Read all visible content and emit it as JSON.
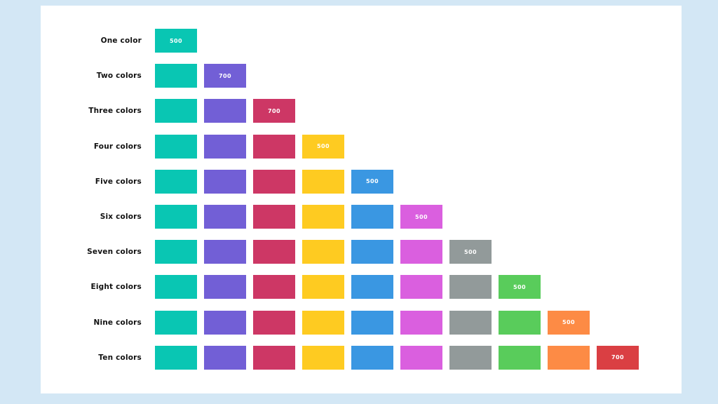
{
  "palette": {
    "teal": "#09c6b3",
    "purple": "#725fd6",
    "crimson": "#cd3765",
    "yellow": "#fecb21",
    "blue": "#3a97e2",
    "magenta": "#da5fdf",
    "gray": "#929a9a",
    "green": "#59cc5b",
    "orange": "#fd8b45",
    "red": "#da3f43"
  },
  "rows": [
    {
      "label": "One color",
      "swatches": [
        "teal"
      ],
      "shade": "500"
    },
    {
      "label": "Two colors",
      "swatches": [
        "teal",
        "purple"
      ],
      "shade": "700"
    },
    {
      "label": "Three colors",
      "swatches": [
        "teal",
        "purple",
        "crimson"
      ],
      "shade": "700"
    },
    {
      "label": "Four colors",
      "swatches": [
        "teal",
        "purple",
        "crimson",
        "yellow"
      ],
      "shade": "500"
    },
    {
      "label": "Five colors",
      "swatches": [
        "teal",
        "purple",
        "crimson",
        "yellow",
        "blue"
      ],
      "shade": "500"
    },
    {
      "label": "Six colors",
      "swatches": [
        "teal",
        "purple",
        "crimson",
        "yellow",
        "blue",
        "magenta"
      ],
      "shade": "500"
    },
    {
      "label": "Seven colors",
      "swatches": [
        "teal",
        "purple",
        "crimson",
        "yellow",
        "blue",
        "magenta",
        "gray"
      ],
      "shade": "500"
    },
    {
      "label": "Eight colors",
      "swatches": [
        "teal",
        "purple",
        "crimson",
        "yellow",
        "blue",
        "magenta",
        "gray",
        "green"
      ],
      "shade": "500"
    },
    {
      "label": "Nine colors",
      "swatches": [
        "teal",
        "purple",
        "crimson",
        "yellow",
        "blue",
        "magenta",
        "gray",
        "green",
        "orange"
      ],
      "shade": "500"
    },
    {
      "label": "Ten colors",
      "swatches": [
        "teal",
        "purple",
        "crimson",
        "yellow",
        "blue",
        "magenta",
        "gray",
        "green",
        "orange",
        "red"
      ],
      "shade": "700"
    }
  ]
}
